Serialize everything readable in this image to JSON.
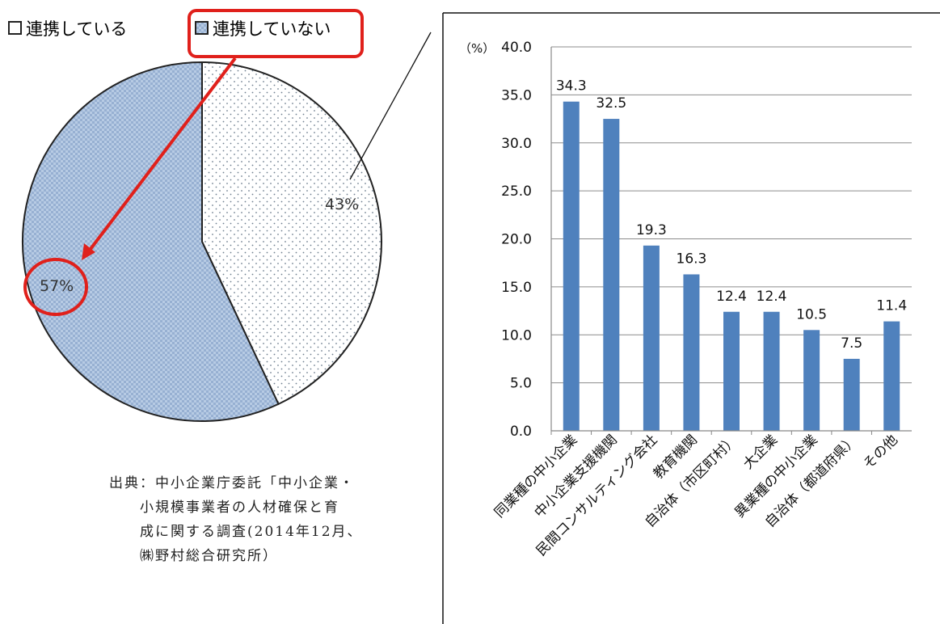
{
  "legend": {
    "item1": "連携している",
    "item2": "連携していない"
  },
  "pie": {
    "slices": [
      {
        "name": "連携している",
        "value": 43,
        "label": "43%",
        "color": "#ffffff"
      },
      {
        "name": "連携していない",
        "value": 57,
        "label": "57%",
        "color": "#a9c0dc"
      }
    ],
    "highlight_color": "#e0201b"
  },
  "source": {
    "line1": "出典：中小企業庁委託「中小企業・",
    "line2": "小規模事業者の人材確保と育",
    "line3": "成に関する調査(2014年12月、",
    "line4": "㈱野村総合研究所）"
  },
  "chart_data": [
    {
      "type": "pie",
      "categories": [
        "連携している",
        "連携していない"
      ],
      "values": [
        43,
        57
      ],
      "labels": [
        "43%",
        "57%"
      ],
      "legend": "top"
    },
    {
      "type": "bar",
      "unit_label": "（%）",
      "categories": [
        "同業種の中小企業",
        "中小企業支援機関",
        "民間コンサルティング会社",
        "教育機関",
        "自治体（市区町村）",
        "大企業",
        "異業種の中小企業",
        "自治体（都道府県）",
        "その他"
      ],
      "values": [
        34.3,
        32.5,
        19.3,
        16.3,
        12.4,
        12.4,
        10.5,
        7.5,
        11.4
      ],
      "value_labels": [
        "34.3",
        "32.5",
        "19.3",
        "16.3",
        "12.4",
        "12.4",
        "10.5",
        "7.5",
        "11.4"
      ],
      "yticks": [
        "0.0",
        "5.0",
        "10.0",
        "15.0",
        "20.0",
        "25.0",
        "30.0",
        "35.0",
        "40.0"
      ],
      "ylim": [
        0,
        40
      ],
      "grid": true,
      "bar_color": "#4f81bd"
    }
  ]
}
